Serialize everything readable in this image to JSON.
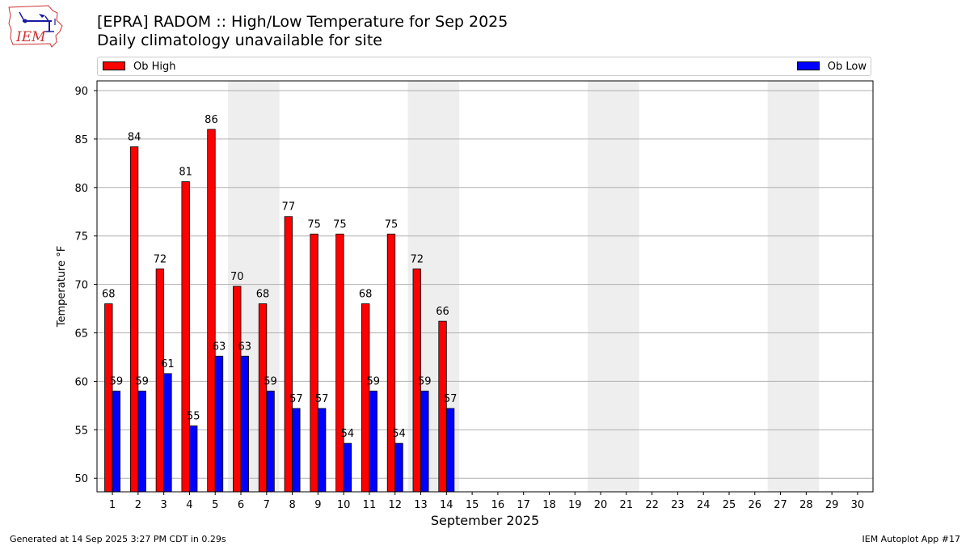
{
  "logo": {
    "text": "IEM",
    "icon": "iowa-state-outline-with-weather-station-icon"
  },
  "title": {
    "line1": "[EPRA] RADOM :: High/Low Temperature for Sep 2025",
    "line2": "Daily climatology unavailable for site"
  },
  "legend": {
    "high_label": "Ob High",
    "low_label": "Ob Low",
    "placement": "top, above plot"
  },
  "footer": {
    "left": "Generated at 14 Sep 2025 3:27 PM CDT in 0.29s",
    "right": "IEM Autoplot App #17"
  },
  "colors": {
    "high": "#ff0000",
    "low": "#0000ff",
    "weekend_shade": "#eeeeee",
    "grid": "#b0b0b0"
  },
  "chart_data": {
    "type": "bar",
    "xlabel": "September 2025",
    "ylabel": "Temperature °F",
    "ylim": [
      48.6,
      91
    ],
    "yticks": [
      50,
      55,
      60,
      65,
      70,
      75,
      80,
      85,
      90
    ],
    "grid": "horizontal",
    "categories": [
      "1",
      "2",
      "3",
      "4",
      "5",
      "6",
      "7",
      "8",
      "9",
      "10",
      "11",
      "12",
      "13",
      "14",
      "15",
      "16",
      "17",
      "18",
      "19",
      "20",
      "21",
      "22",
      "23",
      "24",
      "25",
      "26",
      "27",
      "28",
      "29",
      "30"
    ],
    "weekend_days": [
      6,
      7,
      13,
      14,
      20,
      21,
      27,
      28
    ],
    "series": [
      {
        "name": "Ob High",
        "color": "#ff0000",
        "values": [
          68,
          84.2,
          71.6,
          80.6,
          86,
          69.8,
          68,
          77,
          75.2,
          75.2,
          68,
          75.2,
          71.6,
          66.2,
          null,
          null,
          null,
          null,
          null,
          null,
          null,
          null,
          null,
          null,
          null,
          null,
          null,
          null,
          null,
          null
        ],
        "labels": [
          "68",
          "84",
          "72",
          "81",
          "86",
          "70",
          "68",
          "77",
          "75",
          "75",
          "68",
          "75",
          "72",
          "66"
        ]
      },
      {
        "name": "Ob Low",
        "color": "#0000ff",
        "values": [
          59,
          59,
          60.8,
          55.4,
          62.6,
          62.6,
          59,
          57.2,
          57.2,
          53.6,
          59,
          53.6,
          59,
          57.2,
          null,
          null,
          null,
          null,
          null,
          null,
          null,
          null,
          null,
          null,
          null,
          null,
          null,
          null,
          null,
          null
        ],
        "labels": [
          "59",
          "59",
          "61",
          "55",
          "63",
          "63",
          "59",
          "57",
          "57",
          "54",
          "59",
          "54",
          "59",
          "57"
        ]
      }
    ]
  }
}
